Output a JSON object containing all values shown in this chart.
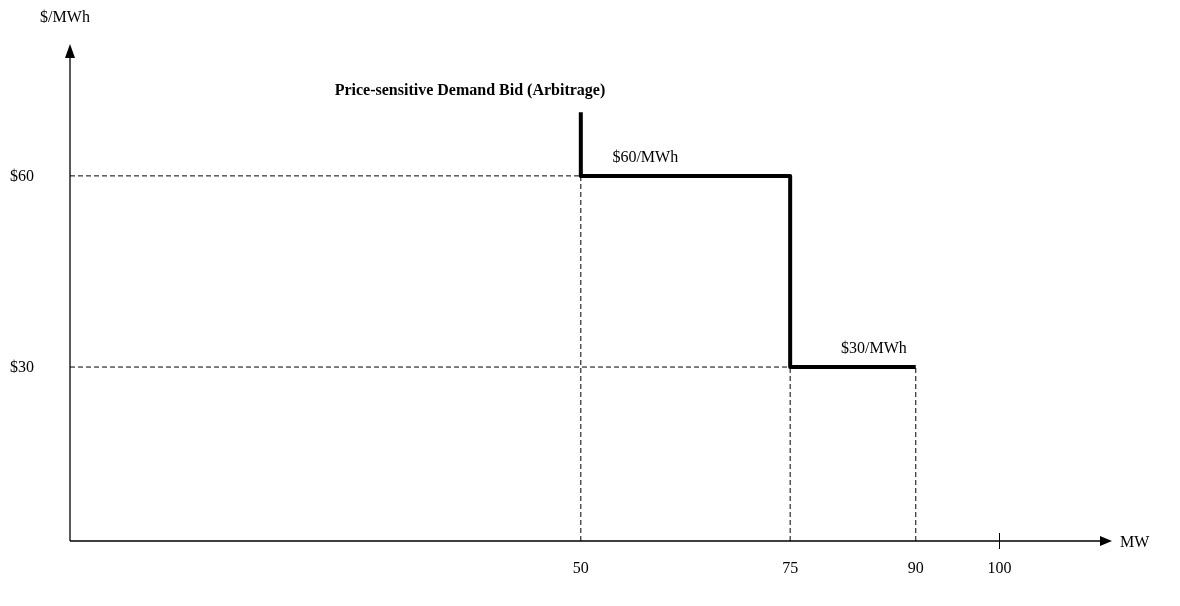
{
  "chart_data": {
    "type": "line",
    "title": "Price-sensitive Demand Bid (Arbitrage)",
    "xlabel": "MW",
    "ylabel": "$/MWh",
    "x": [
      50,
      50,
      75,
      75,
      90
    ],
    "series": [
      {
        "color": "#000000",
        "values": [
          70,
          60,
          60,
          30,
          30
        ]
      }
    ],
    "xlim": [
      -11,
      112
    ],
    "xticks": [
      50,
      75,
      90,
      100
    ],
    "ylim": [
      2.7,
      78.5
    ],
    "yticks": [
      {
        "value": 30,
        "label": "$30"
      },
      {
        "value": 60,
        "label": "$60"
      }
    ],
    "ref_lines": [
      {
        "axis": "y",
        "value": 60,
        "line_style": "dashed"
      },
      {
        "axis": "y",
        "value": 30,
        "line_style": "dashed"
      },
      {
        "axis": "x",
        "value": 50,
        "line_style": "dashed"
      },
      {
        "axis": "x",
        "value": 75,
        "line_style": "dashed"
      },
      {
        "axis": "x",
        "value": 90,
        "line_style": "dashed"
      }
    ],
    "annotations": [
      {
        "text": "$60/MWh",
        "x": 57.7,
        "y": 60
      },
      {
        "text": "$30/MWh",
        "x": 85,
        "y": 30
      }
    ],
    "grid": false,
    "marker": "none",
    "line_style": "solid"
  }
}
